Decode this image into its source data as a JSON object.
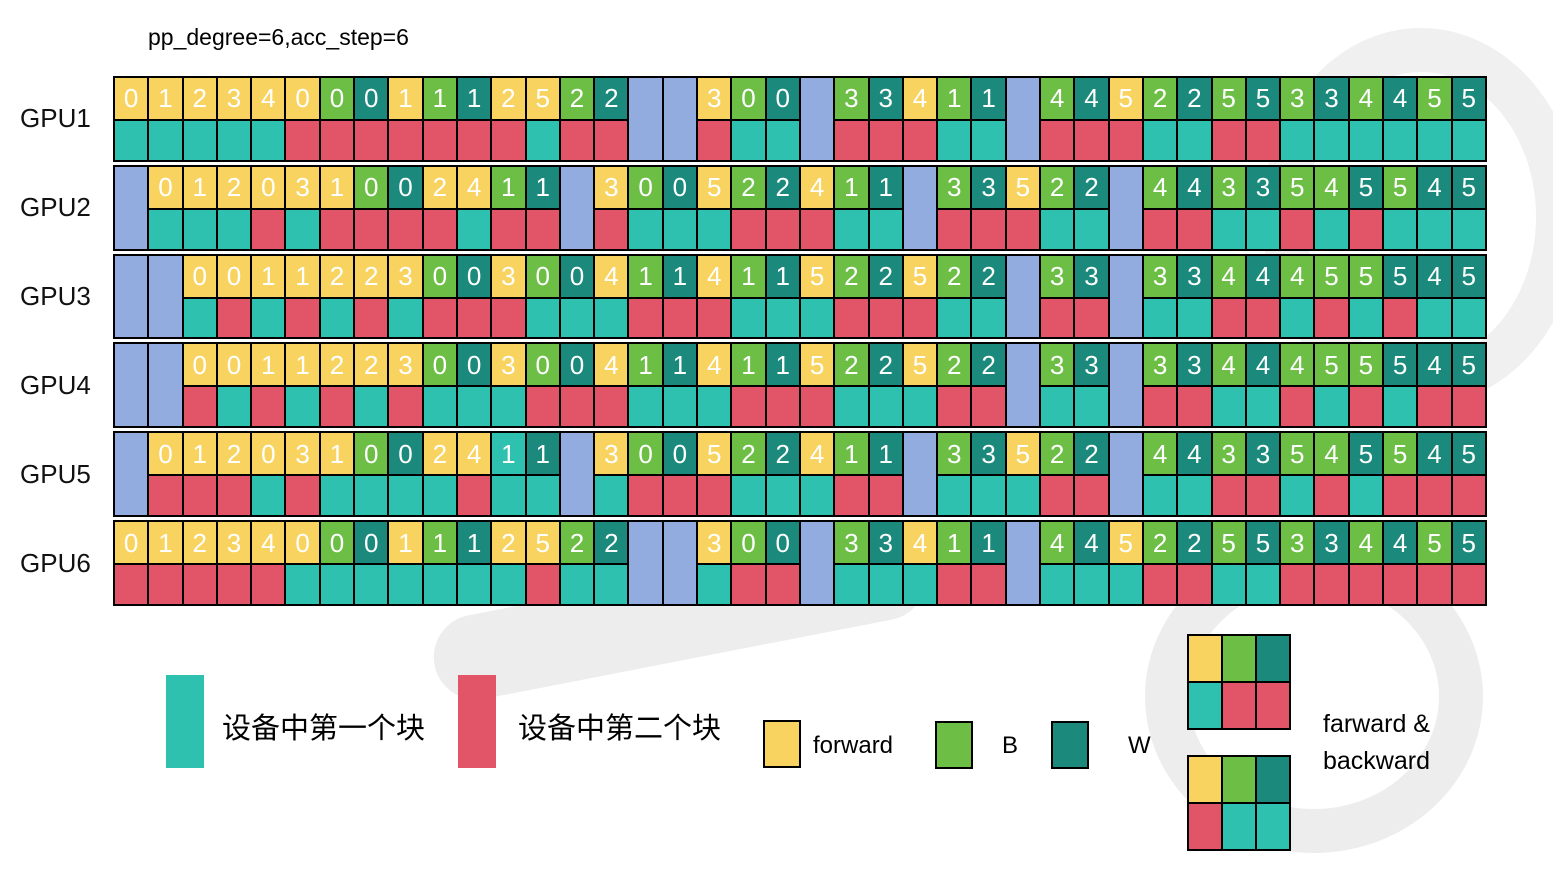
{
  "title": "pp_degree=6,acc_step=6",
  "colors": {
    "forward": "#F9D35F",
    "B": "#6CBE45",
    "W": "#1B897B",
    "chunk1": "#2FC1AF",
    "chunk2": "#E25568",
    "idle": "#92ACE0",
    "border": "#000000"
  },
  "legend": {
    "chunk1_label": "设备中第一个块",
    "chunk2_label": "设备中第二个块",
    "forward_label": "forward",
    "b_label": "B",
    "w_label": "W",
    "combo_label_line1": "farward &",
    "combo_label_line2": "backward",
    "combo_grid_top": {
      "top": [
        "forward",
        "B",
        "W"
      ],
      "bottom": [
        "chunk1",
        "chunk2",
        "chunk2"
      ]
    },
    "combo_grid_bottom": {
      "top": [
        "forward",
        "B",
        "W"
      ],
      "bottom": [
        "chunk2",
        "chunk1",
        "chunk1"
      ]
    }
  },
  "chart_data": {
    "type": "heatmap",
    "title": "pp_degree=6,acc_step=6",
    "columns": 40,
    "cell_encoding": "NOC where N=microbatch number, O=op (F=forward yellow, B=green, W=dark teal, T=teal-colored top), C=chunk (1=first chunk teal, 2=second chunk red); '-' = idle bubble (blue)",
    "rows": [
      {
        "label": "GPU1",
        "cells": [
          "0F1",
          "1F1",
          "2F1",
          "3F1",
          "4F1",
          "0F2",
          "0B2",
          "0W2",
          "1F2",
          "1B2",
          "1W2",
          "2F2",
          "5F1",
          "2B2",
          "2W2",
          "-",
          "-",
          "3F2",
          "0B1",
          "0W1",
          "-",
          "3B2",
          "3W2",
          "4F2",
          "1B1",
          "1W1",
          "-",
          "4B2",
          "4W2",
          "5F2",
          "2B1",
          "2W1",
          "5B2",
          "5W2",
          "3B1",
          "3W1",
          "4B1",
          "4W1",
          "5B1",
          "5W1"
        ]
      },
      {
        "label": "GPU2",
        "cells": [
          "-",
          "0F1",
          "1F1",
          "2F1",
          "0F2",
          "3F1",
          "1F2",
          "0B2",
          "0W2",
          "2F2",
          "4F1",
          "1B2",
          "1W2",
          "-",
          "3F2",
          "0B1",
          "0W1",
          "5F1",
          "2B2",
          "2W2",
          "4F2",
          "1B1",
          "1W1",
          "-",
          "3B2",
          "3W2",
          "5F2",
          "2B1",
          "2W1",
          "-",
          "4B2",
          "4W2",
          "3B1",
          "3W1",
          "5B2",
          "4B1",
          "5W2",
          "5B1",
          "4W1",
          "5W1"
        ]
      },
      {
        "label": "GPU3",
        "cells": [
          "-",
          "-",
          "0F1",
          "0F2",
          "1F1",
          "1F2",
          "2F1",
          "2F2",
          "3F1",
          "0B2",
          "0W2",
          "3F2",
          "0B1",
          "0W1",
          "4F1",
          "1B2",
          "1W2",
          "4F2",
          "1B1",
          "1W1",
          "5F1",
          "2B2",
          "2W2",
          "5F2",
          "2B1",
          "2W1",
          "-",
          "3B2",
          "3W2",
          "-",
          "3B1",
          "3W1",
          "4B2",
          "4W2",
          "4B1",
          "5B2",
          "5B1",
          "5W2",
          "4W1",
          "5W1"
        ]
      },
      {
        "label": "GPU4",
        "cells": [
          "-",
          "-",
          "0F2",
          "0F1",
          "1F2",
          "1F1",
          "2F2",
          "2F1",
          "3F2",
          "0B1",
          "0W1",
          "3F1",
          "0B2",
          "0W2",
          "4F2",
          "1B1",
          "1W1",
          "4F1",
          "1B2",
          "1W2",
          "5F2",
          "2B1",
          "2W1",
          "5F1",
          "2B2",
          "2W2",
          "-",
          "3B1",
          "3W1",
          "-",
          "3B2",
          "3W2",
          "4B1",
          "4W1",
          "4B2",
          "5B1",
          "5B2",
          "5W1",
          "4W2",
          "5W2"
        ]
      },
      {
        "label": "GPU5",
        "cells": [
          "-",
          "0F2",
          "1F2",
          "2F2",
          "0F1",
          "3F2",
          "1F1",
          "0B1",
          "0W1",
          "2F1",
          "4F2",
          "1T1",
          "1W1",
          "-",
          "3F1",
          "0B2",
          "0W2",
          "5F2",
          "2B1",
          "2W1",
          "4F1",
          "1B2",
          "1W2",
          "-",
          "3B1",
          "3W1",
          "5F1",
          "2B2",
          "2W2",
          "-",
          "4B1",
          "4W1",
          "3B2",
          "3W2",
          "5B1",
          "4B2",
          "5W1",
          "5B2",
          "4W2",
          "5W2"
        ]
      },
      {
        "label": "GPU6",
        "cells": [
          "0F2",
          "1F2",
          "2F2",
          "3F2",
          "4F2",
          "0F1",
          "0B1",
          "0W1",
          "1F1",
          "1B1",
          "1W1",
          "2F1",
          "5F2",
          "2B1",
          "2W1",
          "-",
          "-",
          "3F1",
          "0B2",
          "0W2",
          "-",
          "3B1",
          "3W1",
          "4F1",
          "1B2",
          "1W2",
          "-",
          "4B1",
          "4W1",
          "5F1",
          "2B2",
          "2W2",
          "5B1",
          "5W1",
          "3B2",
          "3W2",
          "4B2",
          "4W2",
          "5B2",
          "5W2"
        ]
      }
    ]
  }
}
